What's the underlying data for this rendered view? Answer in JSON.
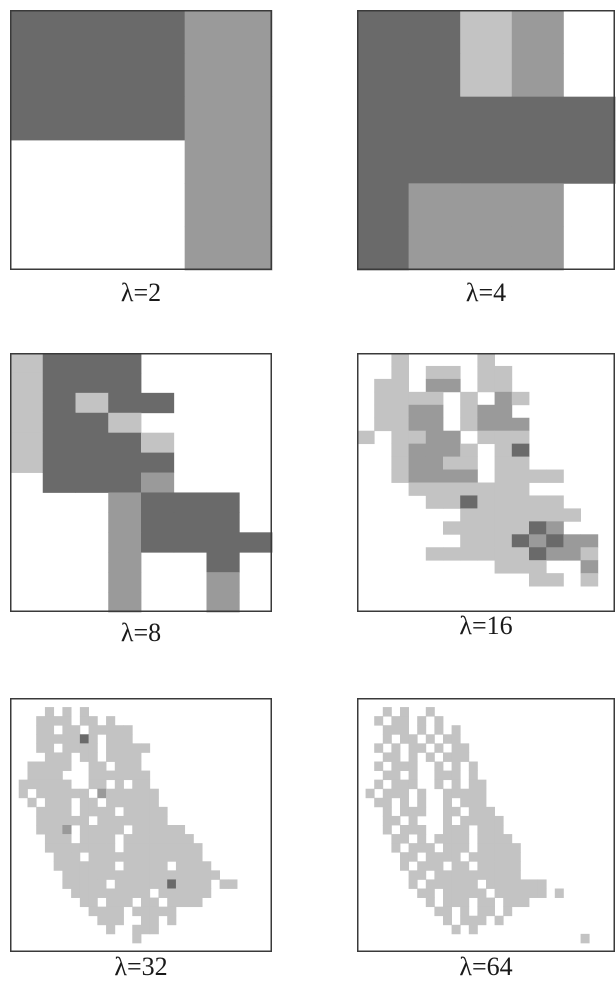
{
  "colors": {
    "dark": "#6a6a6a",
    "medium": "#9a9a9a",
    "light": "#c3c3c3",
    "border": "#3a3a3a",
    "background": "#ffffff"
  },
  "panels": [
    {
      "label": "λ=2",
      "grid": [
        "221",
        "221",
        "221",
        "..1",
        "..1",
        "..1"
      ]
    },
    {
      "label": "λ=4",
      "grid": [
        "2231.",
        "2231.",
        "22222",
        "22222",
        "2111.",
        "2111."
      ]
    },
    {
      "label": "λ=8",
      "grid": [
        "3222....",
        "3222....",
        "32322...",
        "3223....",
        "32223...",
        "32222...",
        ".2221...",
        "...1222.",
        "...1222.",
        "...12222",
        "...1..2.",
        "...1..1.",
        "...1..1."
      ]
    },
    {
      "label": "λ=16",
      "grid": [
        "..3....3.......",
        "..3.33.33......",
        ".33.22.33......",
        ".3333.3.23.....",
        ".3322.322......",
        ".3322.3222.....",
        "3.3322.333.....",
        "..32223.31.....",
        "..32233.33.....",
        "..32222.3333...",
        "...3333333.....",
        "....33133333...",
        "......3333333..",
        ".....3333312...",
        "......33312122.",
        "....3333331223.",
        "........333..2.",
        "..........33.3.",
        "...............",
        "..............."
      ]
    },
    {
      "label": "λ=32",
      "grid": [
        "..............................",
        "....3.3.3.....................",
        "...3333.33.3..................",
        "...33.33.33333................",
        "...3333313.333................",
        "...33.3333.33333..............",
        "....333.33.3333...............",
        "..33333..33.333...............",
        "..3333...3333333..............",
        ".333333..33.3.33..............",
        ".3.333333.2333333.............",
        "..3.333.33.333333.............",
        "...3333.3333.33333............",
        "...333333.33333333............",
        "...3332.33333.333333..........",
        "....333.3333.33333333.........",
        "....33333333.333333333........",
        ".....333.3333333333333........",
        ".....3333333.33333.3333.......",
        "......333333333333333333......",
        "......33333.33333313333.33....",
        ".......333333333.333333.......",
        "........33.333.33.3333........",
        ".........3333.33333...........",
        "..........333..33.3...........",
        "...........3..333.............",
        "..............3...............",
        ".............................."
      ]
    },
    {
      "label": "λ=64",
      "grid": [
        "..............................",
        "...3.3..3.....................",
        "..3.33.3.3....................",
        "...333.3.3.3..................",
        "...3.33.3.33..................",
        "..3.3.33.3.33.................",
        "...33.3.3.333.................",
        "..3.333..3.3.3................",
        "...33.3..333.3................",
        "..3.333..3.3.33...............",
        ".3.333.3..33333...............",
        "..33.3.3..3.333...............",
        "...3.333..33.333..............",
        "...33.3...3.33333.............",
        "...3.333..333.333.............",
        "....33.3.3333.3333............",
        "....3.333.333.33333...........",
        ".....33.3333.333333...........",
        ".....3.333.33.33333...........",
        "......33.3333333333...........",
        "......3.333333.3333333........",
        ".......33.33333.333333.3......",
        "........3.333.33.333..........",
        ".........33.3.33.3............",
        "..........3.333.3.............",
        "...........3.3................",
        "..........................3...",
        ".............................."
      ]
    }
  ]
}
